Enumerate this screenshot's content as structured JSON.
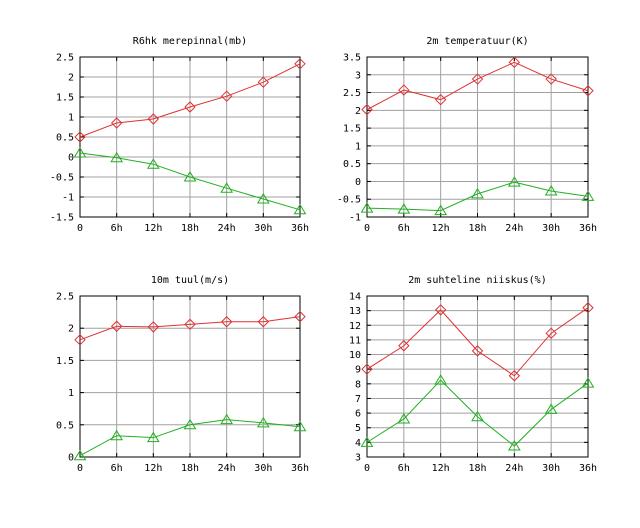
{
  "chart_data": [
    {
      "type": "line",
      "title": "R6hk merepinnal(mb)",
      "categories": [
        "0",
        "6h",
        "12h",
        "18h",
        "24h",
        "30h",
        "36h"
      ],
      "yticks": [
        "2.5",
        "2",
        "1.5",
        "1",
        "0.5",
        "0",
        "-0.5",
        "-1",
        "-1.5"
      ],
      "ylim": [
        -1.5,
        2.5
      ],
      "grid": true,
      "series": [
        {
          "color": "#e03030",
          "marker": "diamond",
          "values": [
            0.5,
            0.85,
            0.95,
            1.25,
            1.52,
            1.87,
            2.33
          ]
        },
        {
          "color": "#20b020",
          "marker": "triangle",
          "values": [
            0.1,
            -0.02,
            -0.18,
            -0.5,
            -0.78,
            -1.05,
            -1.32
          ]
        }
      ]
    },
    {
      "type": "line",
      "title": "2m temperatuur(K)",
      "categories": [
        "0",
        "6h",
        "12h",
        "18h",
        "24h",
        "30h",
        "36h"
      ],
      "yticks": [
        "3.5",
        "3",
        "2.5",
        "2",
        "1.5",
        "1",
        "0.5",
        "0",
        "-0.5",
        "-1"
      ],
      "ylim": [
        -1,
        3.5
      ],
      "grid": true,
      "series": [
        {
          "color": "#e03030",
          "marker": "diamond",
          "values": [
            2.02,
            2.57,
            2.3,
            2.88,
            3.35,
            2.88,
            2.55
          ]
        },
        {
          "color": "#20b020",
          "marker": "triangle",
          "values": [
            -0.75,
            -0.78,
            -0.82,
            -0.35,
            -0.02,
            -0.27,
            -0.42
          ]
        }
      ]
    },
    {
      "type": "line",
      "title": "10m tuul(m/s)",
      "categories": [
        "0",
        "6h",
        "12h",
        "18h",
        "24h",
        "30h",
        "36h"
      ],
      "yticks": [
        "2.5",
        "2",
        "1.5",
        "1",
        "0.5",
        "0"
      ],
      "ylim": [
        0,
        2.5
      ],
      "grid": true,
      "series": [
        {
          "color": "#e03030",
          "marker": "diamond",
          "values": [
            1.82,
            2.03,
            2.02,
            2.06,
            2.1,
            2.1,
            2.18
          ]
        },
        {
          "color": "#20b020",
          "marker": "triangle",
          "values": [
            0.02,
            0.33,
            0.3,
            0.5,
            0.58,
            0.53,
            0.47
          ]
        }
      ]
    },
    {
      "type": "line",
      "title": "2m suhteline niiskus(%)",
      "categories": [
        "0",
        "6h",
        "12h",
        "18h",
        "24h",
        "30h",
        "36h"
      ],
      "yticks": [
        "14",
        "13",
        "12",
        "11",
        "10",
        "9",
        "8",
        "7",
        "6",
        "5",
        "4",
        "3"
      ],
      "ylim": [
        3,
        14
      ],
      "grid": true,
      "series": [
        {
          "color": "#e03030",
          "marker": "diamond",
          "values": [
            9.0,
            10.6,
            13.05,
            10.25,
            8.55,
            11.45,
            13.2
          ]
        },
        {
          "color": "#20b020",
          "marker": "triangle",
          "values": [
            4.0,
            5.6,
            8.25,
            5.75,
            3.75,
            6.25,
            8.05
          ]
        }
      ]
    }
  ]
}
